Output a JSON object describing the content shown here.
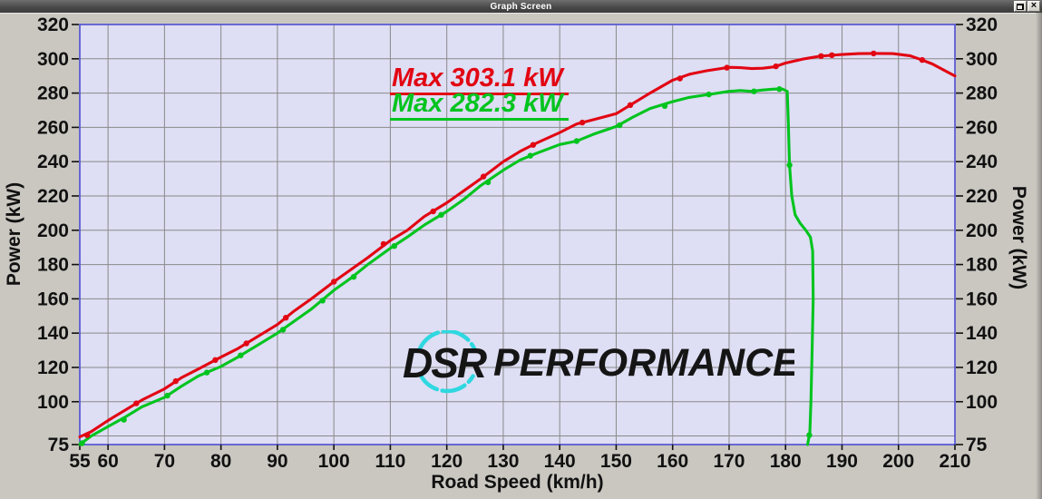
{
  "window": {
    "title": "Graph Screen"
  },
  "chart_data": {
    "type": "line",
    "xlabel": "Road Speed (km/h)",
    "ylabel_left": "Power (kW)",
    "ylabel_right": "Power (kW)",
    "xlim": [
      55,
      210
    ],
    "ylim": [
      75,
      320
    ],
    "x_ticks": [
      55,
      60,
      70,
      80,
      90,
      100,
      110,
      120,
      130,
      140,
      150,
      160,
      170,
      180,
      190,
      200,
      210
    ],
    "y_ticks": [
      320,
      300,
      280,
      260,
      240,
      220,
      200,
      180,
      160,
      140,
      120,
      100,
      75
    ],
    "x_gridlines": [
      60,
      70,
      80,
      90,
      100,
      110,
      120,
      130,
      140,
      150,
      160,
      170,
      180,
      190,
      200
    ],
    "y_gridlines": [
      80,
      100,
      120,
      140,
      160,
      180,
      200,
      220,
      240,
      260,
      280,
      300
    ],
    "grid": true,
    "plot_bg": "#dedef4",
    "grid_color": "#8a8a8a",
    "border_color": "#4e4ed2",
    "axis_text_color": "#111111",
    "series": [
      {
        "max_label": "Max 282.3 kW",
        "max_kw": 282.3,
        "color": "#00c41e",
        "points": [
          [
            55,
            75
          ],
          [
            57,
            80
          ],
          [
            60,
            85.5
          ],
          [
            63,
            91
          ],
          [
            66,
            97
          ],
          [
            70,
            102.5
          ],
          [
            73,
            109
          ],
          [
            76,
            115
          ],
          [
            80,
            120.5
          ],
          [
            83,
            126
          ],
          [
            86,
            132
          ],
          [
            90,
            140
          ],
          [
            93,
            147
          ],
          [
            96,
            154
          ],
          [
            100,
            165
          ],
          [
            103,
            172
          ],
          [
            106,
            180
          ],
          [
            110,
            189.5
          ],
          [
            113,
            196
          ],
          [
            116,
            203
          ],
          [
            120,
            211
          ],
          [
            123,
            218
          ],
          [
            126,
            226
          ],
          [
            130,
            235
          ],
          [
            133,
            241
          ],
          [
            136,
            245
          ],
          [
            140,
            250
          ],
          [
            143,
            252
          ],
          [
            146,
            256
          ],
          [
            150,
            260.5
          ],
          [
            153,
            266
          ],
          [
            156,
            271
          ],
          [
            160,
            275
          ],
          [
            163,
            277.5
          ],
          [
            166,
            279
          ],
          [
            170,
            281
          ],
          [
            172,
            281.5
          ],
          [
            174,
            281
          ],
          [
            176,
            281.8
          ],
          [
            178,
            282.3
          ],
          [
            179.5,
            282.3
          ],
          [
            180.3,
            281
          ],
          [
            180.5,
            262
          ],
          [
            180.7,
            238
          ],
          [
            181.1,
            220
          ],
          [
            181.7,
            209
          ],
          [
            182.6,
            204
          ],
          [
            183.6,
            200
          ],
          [
            184.4,
            196
          ],
          [
            184.8,
            188
          ],
          [
            184.9,
            160
          ],
          [
            184.7,
            130
          ],
          [
            184.5,
            100
          ],
          [
            184.3,
            82
          ],
          [
            183.9,
            75
          ]
        ],
        "markers": [
          [
            55.4,
            75.8
          ],
          [
            62.8,
            89.5
          ],
          [
            70.5,
            103.5
          ],
          [
            77.5,
            117
          ],
          [
            83.5,
            127
          ],
          [
            91,
            142
          ],
          [
            98,
            159
          ],
          [
            103.5,
            172.8
          ],
          [
            110.7,
            190.8
          ],
          [
            119,
            209
          ],
          [
            127.3,
            228
          ],
          [
            134.8,
            243.5
          ],
          [
            143,
            252
          ],
          [
            150.6,
            261.2
          ],
          [
            158.6,
            272.5
          ],
          [
            166.4,
            279.2
          ],
          [
            174.4,
            281
          ],
          [
            178.9,
            282.3
          ],
          [
            180.7,
            238
          ],
          [
            184.2,
            80.5
          ]
        ]
      },
      {
        "max_label": "Max 303.1 kW",
        "max_kw": 303.1,
        "color": "#e20613",
        "points": [
          [
            55,
            79.5
          ],
          [
            57,
            82.5
          ],
          [
            60,
            89
          ],
          [
            63,
            95
          ],
          [
            66,
            101
          ],
          [
            70,
            107.5
          ],
          [
            73,
            114
          ],
          [
            76,
            119
          ],
          [
            80,
            126
          ],
          [
            83,
            131
          ],
          [
            86,
            137
          ],
          [
            90,
            145
          ],
          [
            93,
            153
          ],
          [
            96,
            160
          ],
          [
            100,
            170
          ],
          [
            103,
            177
          ],
          [
            106,
            184
          ],
          [
            110,
            194
          ],
          [
            113,
            200
          ],
          [
            116,
            208
          ],
          [
            120,
            216
          ],
          [
            123,
            223
          ],
          [
            126,
            230
          ],
          [
            130,
            240
          ],
          [
            133,
            246
          ],
          [
            136,
            251
          ],
          [
            140,
            257
          ],
          [
            143,
            262
          ],
          [
            146,
            264.5
          ],
          [
            150,
            268
          ],
          [
            153,
            274
          ],
          [
            156,
            280
          ],
          [
            160,
            287.5
          ],
          [
            163,
            291
          ],
          [
            166,
            293
          ],
          [
            170,
            295
          ],
          [
            172,
            294.8
          ],
          [
            174,
            294.3
          ],
          [
            176,
            294.5
          ],
          [
            178,
            295.3
          ],
          [
            180,
            297.5
          ],
          [
            183,
            299.8
          ],
          [
            186,
            301.5
          ],
          [
            188,
            302
          ],
          [
            190,
            302.5
          ],
          [
            193,
            303
          ],
          [
            196,
            303.1
          ],
          [
            199,
            303
          ],
          [
            202,
            301.8
          ],
          [
            204,
            299.5
          ],
          [
            206,
            297
          ],
          [
            208,
            293.5
          ],
          [
            210,
            290
          ]
        ],
        "markers": [
          [
            56.3,
            80.5
          ],
          [
            65,
            99
          ],
          [
            72,
            112
          ],
          [
            79,
            124.3
          ],
          [
            84.5,
            134
          ],
          [
            91.5,
            149
          ],
          [
            100,
            170
          ],
          [
            108.8,
            192
          ],
          [
            117.6,
            211
          ],
          [
            126.5,
            231.3
          ],
          [
            135.3,
            249.8
          ],
          [
            144,
            262.8
          ],
          [
            152.5,
            273
          ],
          [
            161.3,
            288.5
          ],
          [
            169.6,
            294.8
          ],
          [
            178.3,
            295.6
          ],
          [
            186.3,
            301.6
          ],
          [
            188.2,
            302.1
          ],
          [
            195.6,
            303.1
          ],
          [
            204.2,
            299.3
          ]
        ]
      }
    ]
  },
  "watermark": {
    "dsr": "DSR",
    "performance": "PERFORMANCE",
    "arc_color": "#2fd8e0",
    "text_color": "#151515"
  }
}
